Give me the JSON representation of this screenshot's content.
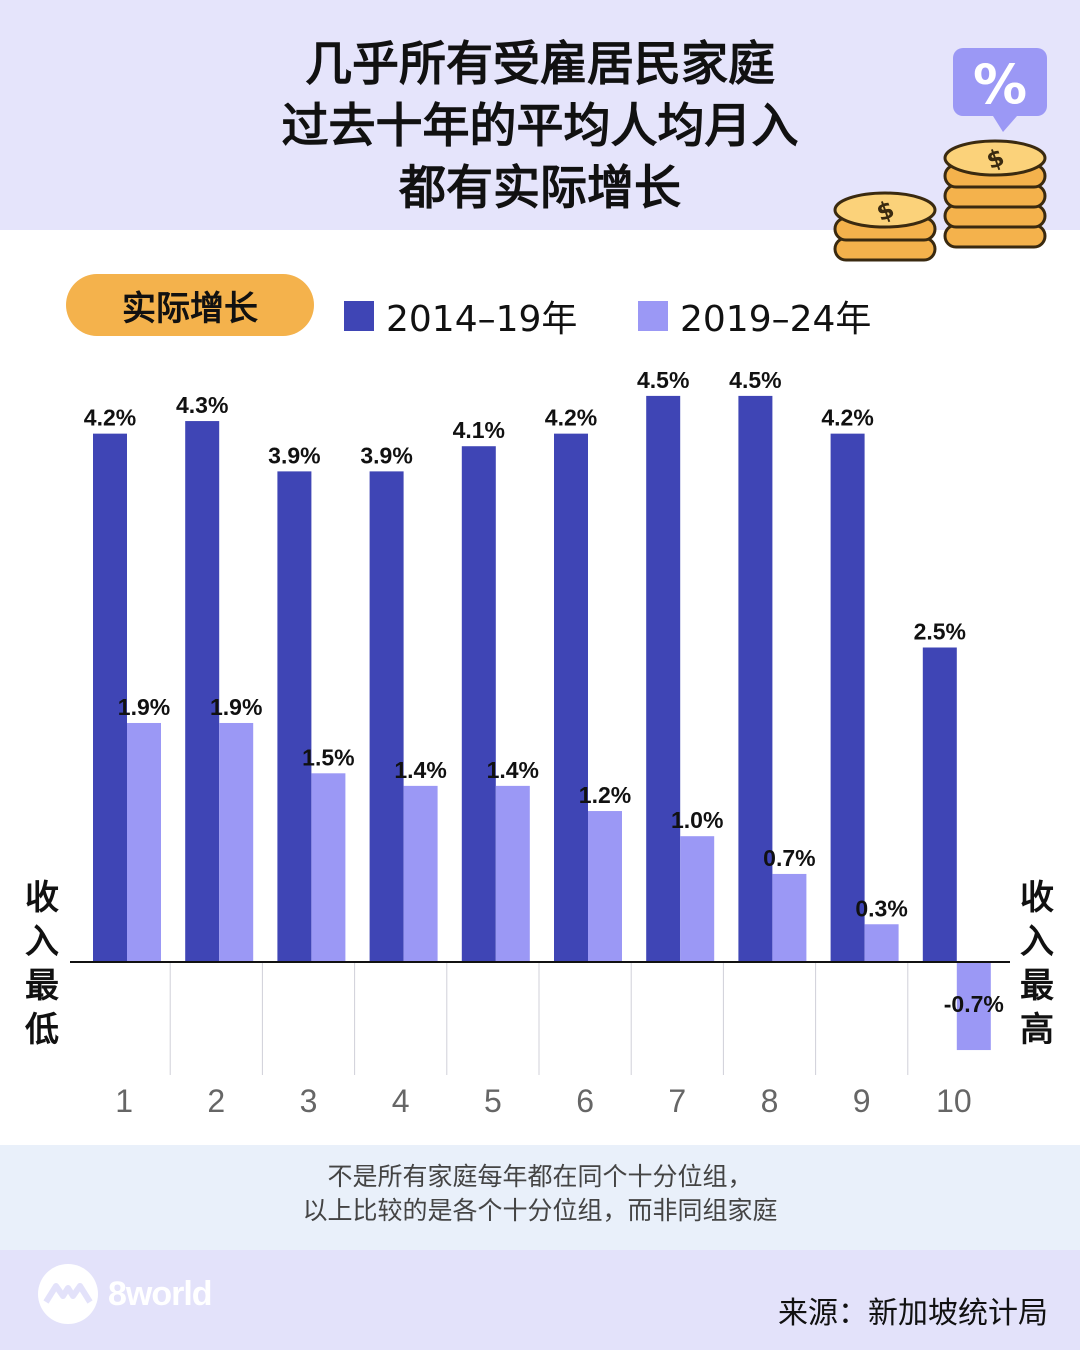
{
  "header": {
    "title_lines": [
      "几乎所有受雇居民家庭",
      "过去十年的平均人均月入",
      "都有实际增长"
    ],
    "bg_color": "#e5e4fb"
  },
  "illustration": {
    "icons": [
      "percent-badge-icon",
      "coin-stack-icon"
    ],
    "percent_symbol": "%",
    "coin_symbol": "$"
  },
  "legend": {
    "pill_label": "实际增长",
    "pill_color": "#f4b24c",
    "items": [
      {
        "label": "2014–19年",
        "color": "#3f45b5"
      },
      {
        "label": "2019–24年",
        "color": "#9b98f5"
      }
    ]
  },
  "side_labels": {
    "left": [
      "收",
      "入",
      "最",
      "低"
    ],
    "right": [
      "收",
      "入",
      "最",
      "高"
    ]
  },
  "chart_data": {
    "type": "bar",
    "title": "",
    "xlabel": "",
    "ylabel": "",
    "categories": [
      "1",
      "2",
      "3",
      "4",
      "5",
      "6",
      "7",
      "8",
      "9",
      "10"
    ],
    "series": [
      {
        "name": "2014–19年",
        "color": "#3f45b5",
        "values": [
          4.2,
          4.3,
          3.9,
          3.9,
          4.1,
          4.2,
          4.5,
          4.5,
          4.2,
          2.5
        ],
        "labels": [
          "4.2%",
          "4.3%",
          "3.9%",
          "3.9%",
          "4.1%",
          "4.2%",
          "4.5%",
          "4.5%",
          "4.2%",
          "2.5%"
        ]
      },
      {
        "name": "2019–24年",
        "color": "#9b98f5",
        "values": [
          1.9,
          1.9,
          1.5,
          1.4,
          1.4,
          1.2,
          1.0,
          0.7,
          0.3,
          -0.7
        ],
        "labels": [
          "1.9%",
          "1.9%",
          "1.5%",
          "1.4%",
          "1.4%",
          "1.2%",
          "1.0%",
          "0.7%",
          "0.3%",
          "-0.7%"
        ]
      }
    ],
    "ylim": [
      -0.7,
      4.5
    ],
    "grid": false,
    "legend_position": "top-left"
  },
  "footnote": {
    "lines": [
      "不是所有家庭每年都在同个十分位组，",
      "以上比较的是各个十分位组，而非同组家庭"
    ]
  },
  "footer": {
    "logo_text": "8world",
    "source": "来源：新加坡统计局"
  }
}
